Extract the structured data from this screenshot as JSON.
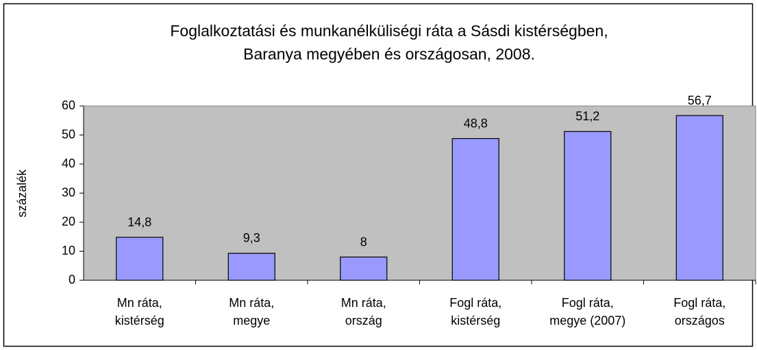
{
  "chart_data": {
    "type": "bar",
    "title": [
      "Foglalkoztatási és munkanélküliségi ráta a Sásdi kistérségben,",
      "Baranya megyében és országosan, 2008."
    ],
    "ylabel": "százalék",
    "categories": [
      [
        "Mn ráta,",
        "kistérség"
      ],
      [
        "Mn ráta,",
        "megye"
      ],
      [
        "Mn ráta,",
        "ország"
      ],
      [
        "Fogl ráta,",
        "kistérség"
      ],
      [
        "Fogl ráta,",
        "megye (2007)"
      ],
      [
        "Fogl ráta,",
        "országos"
      ]
    ],
    "values": [
      14.8,
      9.3,
      8,
      48.8,
      51.2,
      56.7
    ],
    "value_labels": [
      "14,8",
      "9,3",
      "8",
      "48,8",
      "51,2",
      "56,7"
    ],
    "color": "#9999ff",
    "ylim": [
      0,
      60
    ],
    "yticks": [
      0,
      10,
      20,
      30,
      40,
      50,
      60
    ],
    "grid": false
  }
}
